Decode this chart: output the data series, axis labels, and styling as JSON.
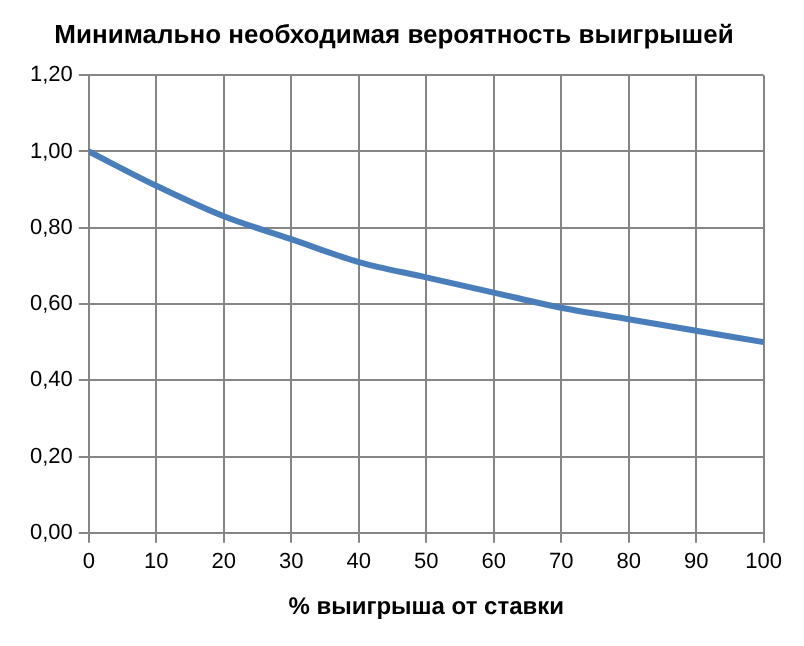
{
  "chart_data": {
    "type": "line",
    "title": "Минимально необходимая вероятность выигрышей",
    "xlabel": "% выигрыша от ставки",
    "x": [
      0,
      10,
      20,
      30,
      40,
      50,
      60,
      70,
      80,
      90,
      100
    ],
    "series": [
      {
        "color": "#4a7ebb",
        "values": [
          1.0,
          0.91,
          0.83,
          0.77,
          0.71,
          0.67,
          0.63,
          0.59,
          0.56,
          0.53,
          0.5
        ]
      }
    ],
    "xlim": [
      0,
      100
    ],
    "xticks": [
      0,
      10,
      20,
      30,
      40,
      50,
      60,
      70,
      80,
      90,
      100
    ],
    "ylim": [
      0,
      1.2
    ],
    "yticks": [
      {
        "value": 0,
        "label": "0,00"
      },
      {
        "value": 0.2,
        "label": "0,20"
      },
      {
        "value": 0.4,
        "label": "0,40"
      },
      {
        "value": 0.6,
        "label": "0,60"
      },
      {
        "value": 0.8,
        "label": "0,80"
      },
      {
        "value": 1,
        "label": "1,00"
      },
      {
        "value": 1.2,
        "label": "1,20"
      }
    ],
    "grid": true,
    "legend": false,
    "marker": "none",
    "line_style": "solid"
  }
}
